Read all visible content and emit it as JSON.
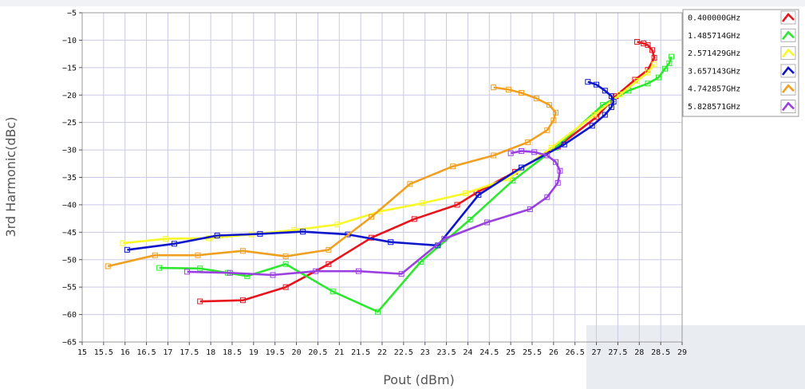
{
  "chart_data": {
    "type": "line",
    "xlabel": "Pout (dBm)",
    "ylabel": "3rd Harmonic(dBc)",
    "xlim": [
      15,
      29
    ],
    "ylim": [
      -65,
      -5
    ],
    "xticks": [
      "15",
      "15.5",
      "16",
      "16.5",
      "17",
      "17.5",
      "18",
      "18.5",
      "19",
      "19.5",
      "20",
      "20.5",
      "21",
      "21.5",
      "22",
      "22.5",
      "23",
      "23.5",
      "24",
      "24.5",
      "25",
      "25.5",
      "26",
      "26.5",
      "27",
      "27.5",
      "28",
      "28.5",
      "29"
    ],
    "yticks": [
      "-5",
      "-10",
      "-15",
      "-20",
      "-25",
      "-30",
      "-35",
      "-40",
      "-45",
      "-50",
      "-55",
      "-60",
      "-65"
    ],
    "legend_position": "top-right",
    "grid": true,
    "series": [
      {
        "name": "0.400000GHz",
        "color": "#e8141c",
        "points": [
          [
            17.75,
            -57.6
          ],
          [
            18.75,
            -57.4
          ],
          [
            19.75,
            -55.0
          ],
          [
            20.75,
            -50.8
          ],
          [
            21.75,
            -46.0
          ],
          [
            22.75,
            -42.6
          ],
          [
            23.75,
            -40.0
          ],
          [
            24.2,
            -37.8
          ],
          [
            25.1,
            -34.0
          ],
          [
            26.1,
            -29.4
          ],
          [
            27.0,
            -24.0
          ],
          [
            27.45,
            -20.2
          ],
          [
            27.9,
            -17.2
          ],
          [
            28.2,
            -15.4
          ],
          [
            28.35,
            -13.2
          ],
          [
            28.3,
            -11.8
          ],
          [
            28.2,
            -10.9
          ],
          [
            28.1,
            -10.6
          ],
          [
            27.95,
            -10.3
          ]
        ]
      },
      {
        "name": "1.485714GHz",
        "color": "#2ee830",
        "points": [
          [
            16.8,
            -51.5
          ],
          [
            17.75,
            -51.6
          ],
          [
            18.4,
            -52.4
          ],
          [
            18.85,
            -53.0
          ],
          [
            19.75,
            -50.8
          ],
          [
            20.85,
            -55.8
          ],
          [
            21.9,
            -59.5
          ],
          [
            22.9,
            -50.4
          ],
          [
            24.05,
            -42.7
          ],
          [
            25.05,
            -35.6
          ],
          [
            26.05,
            -29.6
          ],
          [
            27.15,
            -21.8
          ],
          [
            27.75,
            -19.2
          ],
          [
            28.2,
            -17.9
          ],
          [
            28.45,
            -16.8
          ],
          [
            28.6,
            -15.2
          ],
          [
            28.7,
            -14.2
          ],
          [
            28.75,
            -13.0
          ]
        ]
      },
      {
        "name": "2.571429GHz",
        "color": "#f8f828",
        "points": [
          [
            15.95,
            -47.0
          ],
          [
            16.95,
            -46.2
          ],
          [
            17.95,
            -46.1
          ],
          [
            18.95,
            -45.4
          ],
          [
            19.95,
            -44.6
          ],
          [
            20.95,
            -43.6
          ],
          [
            21.95,
            -41.2
          ],
          [
            22.95,
            -39.7
          ],
          [
            23.95,
            -37.9
          ],
          [
            24.95,
            -35.2
          ],
          [
            25.95,
            -29.6
          ],
          [
            26.95,
            -23.6
          ],
          [
            27.55,
            -19.9
          ],
          [
            27.95,
            -17.4
          ],
          [
            28.2,
            -15.9
          ],
          [
            28.35,
            -14.4
          ]
        ]
      },
      {
        "name": "3.657143GHz",
        "color": "#0e16cc",
        "points": [
          [
            16.05,
            -48.2
          ],
          [
            17.15,
            -47.1
          ],
          [
            18.15,
            -45.6
          ],
          [
            19.15,
            -45.3
          ],
          [
            20.15,
            -44.9
          ],
          [
            21.2,
            -45.4
          ],
          [
            22.2,
            -46.8
          ],
          [
            23.3,
            -47.4
          ],
          [
            24.25,
            -38.2
          ],
          [
            25.25,
            -33.2
          ],
          [
            26.25,
            -29.0
          ],
          [
            26.9,
            -25.6
          ],
          [
            27.2,
            -23.6
          ],
          [
            27.35,
            -22.2
          ],
          [
            27.4,
            -21.2
          ],
          [
            27.35,
            -20.2
          ],
          [
            27.2,
            -19.2
          ],
          [
            27.0,
            -18.1
          ],
          [
            26.8,
            -17.6
          ]
        ]
      },
      {
        "name": "4.742857GHz",
        "color": "#f0a020",
        "points": [
          [
            15.6,
            -51.2
          ],
          [
            16.7,
            -49.2
          ],
          [
            17.7,
            -49.2
          ],
          [
            18.75,
            -48.4
          ],
          [
            19.75,
            -49.4
          ],
          [
            20.75,
            -48.2
          ],
          [
            21.75,
            -42.2
          ],
          [
            22.65,
            -36.2
          ],
          [
            23.65,
            -33.0
          ],
          [
            24.6,
            -31.0
          ],
          [
            25.4,
            -28.6
          ],
          [
            25.85,
            -26.4
          ],
          [
            26.0,
            -24.6
          ],
          [
            26.05,
            -23.2
          ],
          [
            25.9,
            -21.8
          ],
          [
            25.6,
            -20.6
          ],
          [
            25.25,
            -19.6
          ],
          [
            24.95,
            -19.0
          ],
          [
            24.6,
            -18.6
          ]
        ]
      },
      {
        "name": "5.828571GHz",
        "color": "#9a40e0",
        "points": [
          [
            17.45,
            -52.2
          ],
          [
            18.45,
            -52.4
          ],
          [
            19.45,
            -52.8
          ],
          [
            20.45,
            -52.1
          ],
          [
            21.45,
            -52.1
          ],
          [
            22.45,
            -52.6
          ],
          [
            23.45,
            -46.2
          ],
          [
            24.45,
            -43.2
          ],
          [
            25.45,
            -40.8
          ],
          [
            25.85,
            -38.6
          ],
          [
            26.1,
            -36.0
          ],
          [
            26.15,
            -33.8
          ],
          [
            26.05,
            -32.2
          ],
          [
            25.85,
            -31.0
          ],
          [
            25.55,
            -30.4
          ],
          [
            25.25,
            -30.2
          ],
          [
            25.0,
            -30.6
          ]
        ]
      }
    ]
  }
}
